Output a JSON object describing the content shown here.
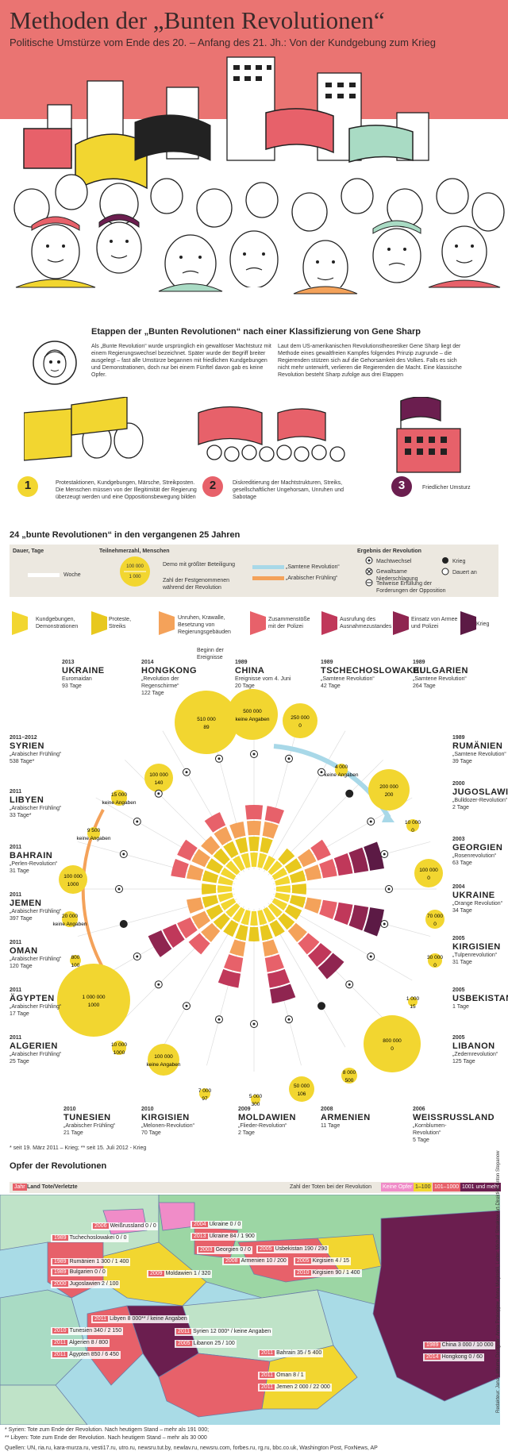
{
  "header": {
    "title": "Methoden der „Bunten Revolutionen“",
    "subtitle": "Politische Umstürze vom Ende des 20. – Anfang des 21. Jh.: Von der Kundgebung zum Krieg"
  },
  "colors": {
    "header_bg": "#ea7472",
    "yellow": "#f2d630",
    "red": "#e7616a",
    "purple": "#6b1e4f",
    "orange": "#f4a25a",
    "lightblue": "#a8d8e8"
  },
  "stages": {
    "title": "Etappen der „Bunten Revolutionen“ nach einer Klassifizierung von Gene Sharp",
    "intro_left": "Als „Bunte Revolution“ wurde ursprünglich ein gewaltloser Machtsturz mit einem Regierungswechsel bezeichnet. Später wurde der Begriff breiter ausgelegt – fast alle Umstürze begannen mit friedlichen Kundgebungen und Demonstrationen, doch nur bei einem Fünftel davon gab es keine Opfer.",
    "intro_right": "Laut dem US-amerikanischen Revolutionstheoretiker Gene Sharp liegt der Methode eines gewaltfreien Kampfes folgendes Prinzip zugrunde – die Regierenden stützen sich auf die Gehorsamkeit des Volkes. Falls es sich nicht mehr unterwirft, verlieren die Regierenden die Macht. Eine klassische Revolution besteht Sharp zufolge aus drei Etappen",
    "items": [
      {
        "num": "1",
        "text": "Protestaktionen, Kundgebungen, Märsche, Streikposten. Die Menschen müssen von der Illegitimität der Regierung überzeugt werden und eine Oppositionsbewegung bilden"
      },
      {
        "num": "2",
        "text": "Diskreditierung der Machtstrukturen, Streiks, gesellschaftlicher Ungehorsam, Unruhen und Sabotage"
      },
      {
        "num": "3",
        "text": "Friedlicher Umsturz"
      }
    ]
  },
  "revolutions": {
    "title": "24 „bunte Revolutionen“ in den vergangenen 25 Jahren",
    "legend": {
      "duration_head": "Dauer, Tage",
      "duration_label": "Woche",
      "participants_head": "Teilnehmerzahl, Menschen",
      "bubble_top": "100 000",
      "bubble_bottom": "1 000",
      "bubble_text_top": "Demo mit größter Beteiligung",
      "bubble_text_bottom": "Zahl der Festgenommenen während der Revolution",
      "samtene": "„Samtene Revolution“",
      "arab": "„Arabischer Frühling“",
      "result_head": "Ergebnis der Revolution",
      "r1": "Machtwechsel",
      "r2": "Gewaltsame Niederschlagung",
      "r3": "Teilweise Erfüllung der Forderungen der Opposition",
      "r4": "Krieg",
      "r5": "Dauert an"
    },
    "escalation": [
      {
        "label": "Kundgebungen, Demonstrationen",
        "color": "#f2d630"
      },
      {
        "label": "Proteste, Streiks",
        "color": "#e8c81e"
      },
      {
        "label": "Unruhen, Krawalle, Besetzung von Regierungsgebäuden",
        "color": "#f4a25a"
      },
      {
        "label": "Zusammenstöße mit der Polizei",
        "color": "#e7616a"
      },
      {
        "label": "Ausrufung des Ausnahmezustandes",
        "color": "#c0385a"
      },
      {
        "label": "Einsatz von Armee und Polizei",
        "color": "#8f2550"
      },
      {
        "label": "Krieg",
        "color": "#5c1a45"
      }
    ],
    "start_label": "Beginn der Ereignisse",
    "countries": [
      {
        "year": "2013",
        "name": "UKRAINE",
        "desc": "Euromaidan",
        "days": "93 Tage"
      },
      {
        "year": "2014",
        "name": "HONGKONG",
        "desc": "„Revolution der Regenschirme“",
        "days": "122 Tage"
      },
      {
        "year": "1989",
        "name": "CHINA",
        "desc": "Ereignisse vom 4. Juni",
        "days": "20 Tage"
      },
      {
        "year": "1989",
        "name": "TSCHECHOSLOWAKEI",
        "desc": "„Samtene Revolution“",
        "days": "42 Tage"
      },
      {
        "year": "1989",
        "name": "BULGARIEN",
        "desc": "„Samtene Revolution“",
        "days": "264 Tage"
      },
      {
        "year": "2011–2012",
        "name": "SYRIEN",
        "desc": "„Arabischer Frühling“",
        "days": "538 Tage*"
      },
      {
        "year": "1989",
        "name": "RUMÄNIEN",
        "desc": "„Samtene Revolution“",
        "days": "39 Tage"
      },
      {
        "year": "2011",
        "name": "LIBYEN",
        "desc": "„Arabischer Frühling“",
        "days": "33 Tage*"
      },
      {
        "year": "2000",
        "name": "JUGOSLAWIEN",
        "desc": "„Bulldozer-Revolution“",
        "days": "2 Tage"
      },
      {
        "year": "2011",
        "name": "BAHRAIN",
        "desc": "„Perlen-Revolution“",
        "days": "31 Tage"
      },
      {
        "year": "2003",
        "name": "GEORGIEN",
        "desc": "„Rosenrevolution“",
        "days": "63 Tage"
      },
      {
        "year": "2011",
        "name": "JEMEN",
        "desc": "„Arabischer Frühling“",
        "days": "397 Tage"
      },
      {
        "year": "2004",
        "name": "UKRAINE",
        "desc": "„Orange Revolution“",
        "days": "34 Tage"
      },
      {
        "year": "2011",
        "name": "OMAN",
        "desc": "„Arabischer Frühling“",
        "days": "120 Tage"
      },
      {
        "year": "2005",
        "name": "KIRGISIEN",
        "desc": "„Tulpenrevolution“",
        "days": "31 Tage"
      },
      {
        "year": "2011",
        "name": "ÄGYPTEN",
        "desc": "„Arabischer Frühling“",
        "days": "17 Tage"
      },
      {
        "year": "2005",
        "name": "USBEKISTAN",
        "desc": "",
        "days": "1 Tage"
      },
      {
        "year": "2011",
        "name": "ALGERIEN",
        "desc": "„Arabischer Frühling“",
        "days": "25 Tage"
      },
      {
        "year": "2005",
        "name": "LIBANON",
        "desc": "„Zedernrevolution“",
        "days": "125 Tage"
      },
      {
        "year": "2010",
        "name": "TUNESIEN",
        "desc": "„Arabischer Frühling“",
        "days": "21 Tage"
      },
      {
        "year": "2010",
        "name": "KIRGISIEN",
        "desc": "„Melonen-Revolution“",
        "days": "70 Tage"
      },
      {
        "year": "2009",
        "name": "MOLDAWIEN",
        "desc": "„Flieder-Revolution“",
        "days": "2 Tage"
      },
      {
        "year": "2008",
        "name": "ARMENIEN",
        "desc": "",
        "days": "11 Tage"
      },
      {
        "year": "2006",
        "name": "WEISSRUSSLAND",
        "desc": "„Kornblumen-Revolution“",
        "days": "5 Tage"
      }
    ],
    "bubbles": [
      {
        "top": "510 000",
        "bottom": "89"
      },
      {
        "top": "500 000",
        "bottom": "keine Angaben"
      },
      {
        "top": "250 000",
        "bottom": "0"
      },
      {
        "top": "100 000",
        "bottom": "140"
      },
      {
        "top": "4 000",
        "bottom": "keine Angaben"
      },
      {
        "top": "200 000",
        "bottom": "200"
      },
      {
        "top": "15 000",
        "bottom": "keine Angaben"
      },
      {
        "top": "10 000",
        "bottom": "0"
      },
      {
        "top": "9 500",
        "bottom": "keine Angaben"
      },
      {
        "top": "100 000",
        "bottom": "1000"
      },
      {
        "top": "100 000",
        "bottom": "0"
      },
      {
        "top": "20 000",
        "bottom": "keine Angaben"
      },
      {
        "top": "70 000",
        "bottom": "0"
      },
      {
        "top": "800",
        "bottom": "100"
      },
      {
        "top": "30 000",
        "bottom": "0"
      },
      {
        "top": "1 000 000",
        "bottom": "1000"
      },
      {
        "top": "1 000",
        "bottom": "15"
      },
      {
        "top": "10 000",
        "bottom": "1000"
      },
      {
        "top": "800 000",
        "bottom": "0"
      },
      {
        "top": "8 000",
        "bottom": "500"
      },
      {
        "top": "100 000",
        "bottom": "keine Angaben"
      },
      {
        "top": "7 000",
        "bottom": "97"
      },
      {
        "top": "5 000",
        "bottom": "300"
      },
      {
        "top": "50 000",
        "bottom": "106"
      }
    ],
    "footnote": "* seit 19. März 2011 – Krieg; ** seit 15. Juli 2012 - Krieg"
  },
  "victims": {
    "title": "Opfer der Revolutionen",
    "legend_year": "Jahr",
    "legend_land": "Land Tote/Verletzte",
    "legend_deaths": "Zahl der Toten bei der Revolution",
    "cats": [
      {
        "label": "Keine Opfer",
        "color": "#f08cc8"
      },
      {
        "label": "1–100",
        "color": "#f2d630"
      },
      {
        "label": "101–1000",
        "color": "#e7616a"
      },
      {
        "label": "1001 und mehr",
        "color": "#6b1e4f"
      }
    ],
    "labels": [
      {
        "year": "2006",
        "text": "Weißrussland 0 / 0"
      },
      {
        "year": "1989",
        "text": "Tschechoslowakei 0 / 0"
      },
      {
        "year": "1989",
        "text": "Rumänien 1 300 / 1 400"
      },
      {
        "year": "1989",
        "text": "Bulgarien 0 / 0"
      },
      {
        "year": "2000",
        "text": "Jugoslawien 2 / 100"
      },
      {
        "year": "2009",
        "text": "Moldawien 1 / 320"
      },
      {
        "year": "2004",
        "text": "Ukraine 0 / 0"
      },
      {
        "year": "2013",
        "text": "Ukraine 84 / 1 900"
      },
      {
        "year": "2003",
        "text": "Georgien 0 / 0"
      },
      {
        "year": "2008",
        "text": "Armenien 10 / 200"
      },
      {
        "year": "2005",
        "text": "Usbekistan 190 / 290"
      },
      {
        "year": "2005",
        "text": "Kirgisien 4 / 15"
      },
      {
        "year": "2010",
        "text": "Kirgisien 90 / 1 400"
      },
      {
        "year": "2011",
        "text": "Libyen 8 000** / keine Angaben"
      },
      {
        "year": "2010",
        "text": "Tunesien 340 / 2 150"
      },
      {
        "year": "2011",
        "text": "Algerien 8 / 800"
      },
      {
        "year": "2011",
        "text": "Ägypten 850 / 6 450"
      },
      {
        "year": "2011",
        "text": "Syrien 12 000* / keine Angaben"
      },
      {
        "year": "2005",
        "text": "Libanon 25 / 100"
      },
      {
        "year": "2011",
        "text": "Bahrain 35 / 5 400"
      },
      {
        "year": "2011",
        "text": "Oman 8 / 1"
      },
      {
        "year": "2011",
        "text": "Jemen 2 000 / 22 000"
      },
      {
        "year": "1989",
        "text": "China 3 000 / 10 000"
      },
      {
        "year": "2014",
        "text": "Hongkong 0 / 60"
      }
    ],
    "footnote1": "* Syrien: Tote zum Ende der Revolution. Nach heutigem Stand – mehr als 191 000;",
    "footnote2": "** Libyen: Tote zum Ende der Revolution. Nach heutigem Stand – mehr als 30 000"
  },
  "sources": "Quellen: UN, ria.ru, kara-murza.ru, vesti17.ru, utro.ru, newsru.tut.by, newlav.ru, newsru.com, forbes.ru, rg.ru, bbc.co.uk, Washington Post, FoxNews, AP",
  "credits": "Redakteur: Jana Laltiume Designer: Anna Prokopjew, Anna Marjinskii, Leiter: Michail Simakow Art-Direktion Anton Stepanow"
}
